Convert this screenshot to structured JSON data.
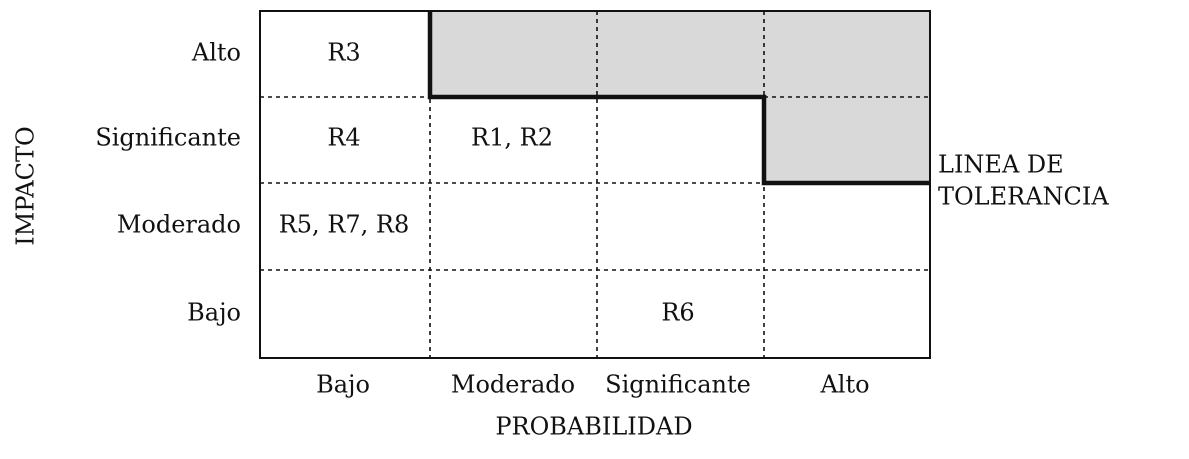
{
  "y_axis": {
    "title": "IMPACTO",
    "levels": [
      "Bajo",
      "Moderado",
      "Significante",
      "Alto"
    ]
  },
  "x_axis": {
    "title": "PROBABILIDAD",
    "levels": [
      "Bajo",
      "Moderado",
      "Significante",
      "Alto"
    ]
  },
  "cells": {
    "alto_bajo": "R3",
    "significante_bajo": "R4",
    "significante_moderado": "R1, R2",
    "moderado_bajo": "R5, R7, R8",
    "bajo_significante": "R6"
  },
  "tolerance_line": {
    "line1": "LINEA DE",
    "line2": "TOLERANCIA"
  },
  "colors": {
    "shaded": "#d9d9d9",
    "line": "#111111"
  }
}
